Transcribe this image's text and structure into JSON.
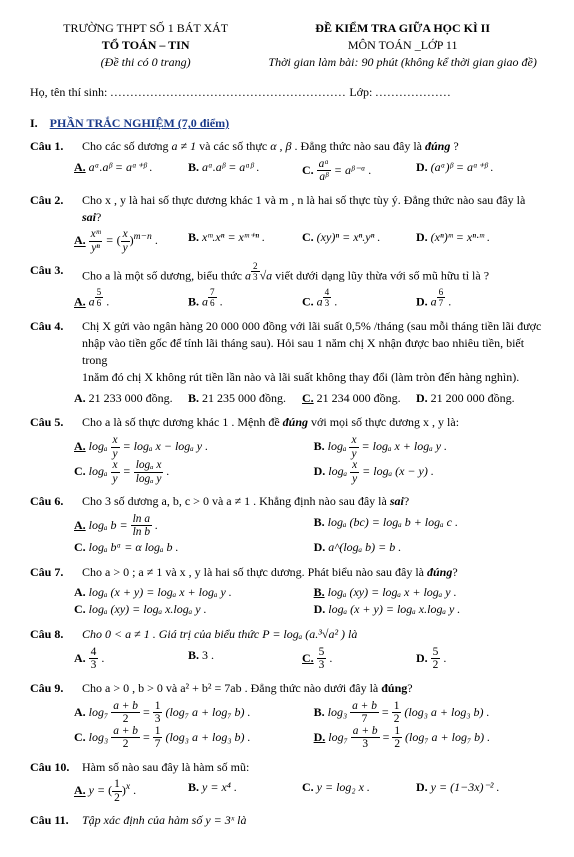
{
  "header": {
    "school": "TRƯỜNG THPT SỐ 1 BÁT XÁT",
    "dept": "TỔ TOÁN – TIN",
    "pages": "(Đề thi có 0 trang)",
    "exam_title": "ĐỀ KIỂM TRA GIỮA HỌC KÌ II",
    "subject": "MÔN TOÁN _LỚP 11",
    "duration": "Thời gian làm bài: 90 phút (không kể thời gian giao đề)"
  },
  "student": {
    "name_label": "Họ, tên thí sinh:",
    "dots": "...........................................................",
    "class_label": "Lớp:",
    "class_dots": "..................."
  },
  "section": {
    "index": "I.",
    "title": "PHẦN TRẮC NGHIỆM (7,0 điểm)"
  },
  "q1": {
    "label": "Câu 1.",
    "text_a": "Cho các số dương ",
    "text_b": " và các số thực ",
    "text_c": ". Đẳng thức nào sau đây là ",
    "text_d": " ?",
    "cond": "a ≠ 1",
    "ab": "α , β",
    "kw": "đúng",
    "optA": "aᵅ.aᵝ = aᵅ⁺ᵝ .",
    "optB": "aᵅ.aᵝ = aᵅᵝ .",
    "optC_pre": "",
    "optC_frac_num": "aᵅ",
    "optC_frac_den": "aᵝ",
    "optC_post": " = aᵝ⁻ᵅ .",
    "optD": "(aᵅ)ᵝ = aᵅ⁺ᵝ ."
  },
  "q2": {
    "label": "Câu 2.",
    "text": "Cho x , y là hai số thực dương khác 1 và m , n là hai số thực tùy ý. Đẳng thức nào sau đây là ",
    "kw": "sai",
    "qmark": "?",
    "optA_fracL_num": "xᵐ",
    "optA_fracL_den": "yⁿ",
    "optA_eq": " = ",
    "optA_fracR_num": "x",
    "optA_fracR_den": "y",
    "optA_exp": "m−n",
    "optA_dot": " .",
    "optB": "xᵐ.xⁿ = xᵐ⁺ⁿ .",
    "optC": "(xy)ⁿ = xⁿ.yⁿ .",
    "optD": "(xⁿ)ᵐ = xⁿ·ᵐ ."
  },
  "q3": {
    "label": "Câu 3.",
    "text_a": "Cho a là một số dương, biểu thức ",
    "expr_a": "a",
    "expr_exp_num": "2",
    "expr_exp_den": "3",
    "expr_root": "√a",
    "text_b": " viết dưới dạng lũy thừa với số mũ hữu tỉ là ?",
    "A": "a",
    "A_num": "5",
    "A_den": "6",
    "B": "a",
    "B_num": "7",
    "B_den": "6",
    "C": "a",
    "C_num": "4",
    "C_den": "3",
    "D": "a",
    "D_num": "6",
    "D_den": "7"
  },
  "q4": {
    "label": "Câu 4.",
    "l1": "Chị X gửi vào ngân hàng 20 000 000 đồng với lãi suất 0,5% /tháng (sau mỗi tháng tiền lãi được",
    "l2": "nhập vào tiền gốc để tính lãi tháng sau). Hỏi sau 1 năm chị X nhận được bao nhiêu tiền, biết trong",
    "l3": "1năm đó chị X không rút tiền lần nào và lãi suất không thay đổi (làm tròn đến hàng nghìn).",
    "A": "21 233 000 đồng.",
    "B": "21 235 000 đồng.",
    "C": "21 234 000 đồng.",
    "D": "21 200 000 đồng."
  },
  "q5": {
    "label": "Câu 5.",
    "text_a": "Cho a là số thực dương khác 1 . Mệnh đề ",
    "kw": "đúng",
    "text_b": " với mọi số thực dương x , y là:",
    "A_pre": "logₐ ",
    "A_num": "x",
    "A_den": "y",
    "A_post": " = logₐ x − logₐ y .",
    "B_pre": "logₐ ",
    "B_num": "x",
    "B_den": "y",
    "B_post": " = logₐ x + logₐ y .",
    "C_pre": "logₐ ",
    "C_num1": "x",
    "C_den1": "y",
    "C_mid": " = ",
    "C_num2": "logₐ x",
    "C_den2": "logₐ y",
    "C_post": " .",
    "D_pre": "logₐ ",
    "D_num": "x",
    "D_den": "y",
    "D_post": " = logₐ (x − y) ."
  },
  "q6": {
    "label": "Câu 6.",
    "text_a": "Cho 3 số dương a, b, c > 0 và a ≠ 1 . Khẳng định nào sau đây là ",
    "kw": "sai",
    "qmark": "?",
    "A_pre": "logₐ b = ",
    "A_num": "ln a",
    "A_den": "ln b",
    "A_post": " .",
    "B": "logₐ (bc) = logₐ b + logₐ c .",
    "C": "logₐ bᵅ = α logₐ b .",
    "D": "a^(logₐ b) = b ."
  },
  "q7": {
    "label": "Câu 7.",
    "text_a": "Cho a > 0 ; a ≠ 1 và x , y là hai số thực dương. Phát biểu nào sau đây là ",
    "kw": "đúng",
    "qmark": "?",
    "A": "logₐ (x + y) = logₐ x + logₐ y .",
    "B": "logₐ (xy) = logₐ x + logₐ y .",
    "C": "logₐ (xy) = logₐ x.logₐ y .",
    "D": "logₐ (x + y) = logₐ x.logₐ y ."
  },
  "q8": {
    "label": "Câu 8.",
    "text_a": "Cho 0 < a ≠ 1 . Giá trị của biểu thức P = logₐ (a.³√a² ) là",
    "A_num": "4",
    "A_den": "3",
    "B": "3 .",
    "C_num": "5",
    "C_den": "3",
    "D_num": "5",
    "D_den": "2"
  },
  "q9": {
    "label": "Câu 9.",
    "text_a": "Cho a > 0 , b > 0 và a² + b² = 7ab . Đẳng thức nào dưới đây là ",
    "kw": "đúng",
    "qmark": "?",
    "A_pre": "log₇ ",
    "A_num": "a + b",
    "A_den": "2",
    "A_mid": " = ",
    "A_rnum": "1",
    "A_rden": "3",
    "A_post": "(log₇ a + log₇ b) .",
    "B_pre": "log₃ ",
    "B_num": "a + b",
    "B_den": "7",
    "B_mid": " = ",
    "B_rnum": "1",
    "B_rden": "2",
    "B_post": "(log₃ a + log₃ b) .",
    "C_pre": "log₃ ",
    "C_num": "a + b",
    "C_den": "2",
    "C_mid": " = ",
    "C_rnum": "1",
    "C_rden": "7",
    "C_post": "(log₃ a + log₃ b) .",
    "D_pre": "log₇ ",
    "D_num": "a + b",
    "D_den": "3",
    "D_mid": " = ",
    "D_rnum": "1",
    "D_rden": "2",
    "D_post": "(log₇ a + log₇ b) ."
  },
  "q10": {
    "label": "Câu 10.",
    "text": "Hàm số nào sau đây là hàm số mũ:",
    "A_pre": "y = ",
    "A_num": "1",
    "A_den": "2",
    "A_exp": "x",
    "A_post": " .",
    "B": "y = x⁴ .",
    "C": "y = log₂ x .",
    "D": "y = (1−3x)⁻² ."
  },
  "q11": {
    "label": "Câu 11.",
    "text": "Tập xác định của hàm số y = 3ˣ là"
  },
  "labels": {
    "A": "A.",
    "B": "B.",
    "C": "C.",
    "D": "D."
  }
}
